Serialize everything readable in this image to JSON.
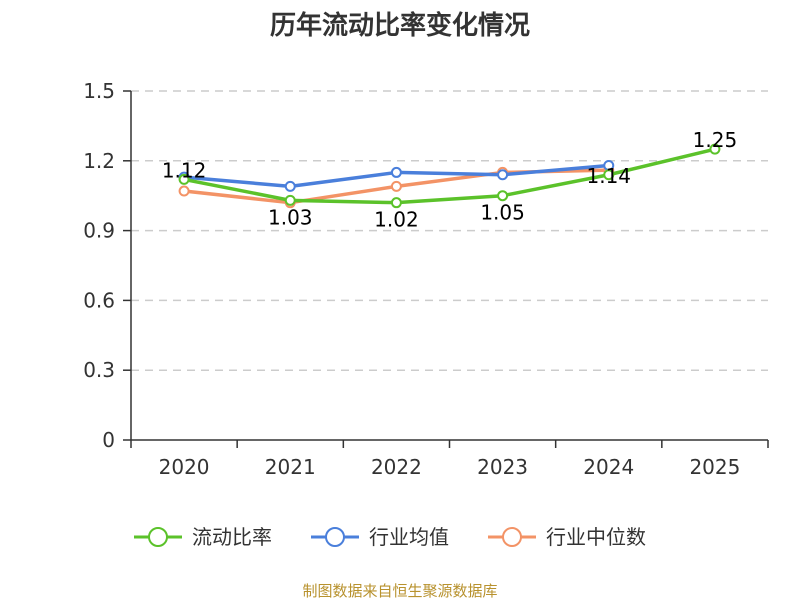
{
  "chart_data": {
    "type": "line",
    "title": "历年流动比率变化情况",
    "categories": [
      "2020",
      "2021",
      "2022",
      "2023",
      "2024",
      "2025"
    ],
    "ylim": [
      0,
      1.5
    ],
    "yticks": [
      "0",
      "0.3",
      "0.6",
      "0.9",
      "1.2",
      "1.5"
    ],
    "ytick_values": [
      0,
      0.3,
      0.6,
      0.9,
      1.2,
      1.5
    ],
    "grid": true,
    "legend_position": "bottom",
    "series": [
      {
        "name": "流动比率",
        "color": "#5bc22a",
        "values": [
          1.12,
          1.03,
          1.02,
          1.05,
          1.14,
          1.25
        ],
        "labels": [
          "1.12",
          "1.03",
          "1.02",
          "1.05",
          "1.14",
          "1.25"
        ]
      },
      {
        "name": "行业均值",
        "color": "#4a7fdb",
        "values": [
          1.13,
          1.09,
          1.15,
          1.14,
          1.18,
          null
        ]
      },
      {
        "name": "行业中位数",
        "color": "#f39366",
        "values": [
          1.07,
          1.02,
          1.09,
          1.15,
          1.16,
          null
        ]
      }
    ],
    "source": "制图数据来自恒生聚源数据库"
  }
}
